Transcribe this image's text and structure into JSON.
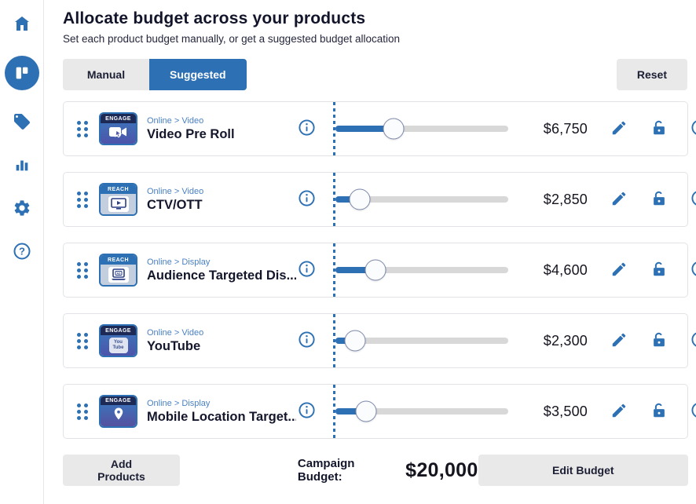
{
  "accent_color": "#2d70b3",
  "sidebar": {
    "items": [
      {
        "icon": "home-icon"
      },
      {
        "icon": "dashboard-icon",
        "active": true
      },
      {
        "icon": "tag-icon"
      },
      {
        "icon": "bar-chart-icon"
      },
      {
        "icon": "gear-icon"
      },
      {
        "icon": "help-icon"
      }
    ]
  },
  "header": {
    "title": "Allocate budget across your products",
    "subtitle": "Set each product budget manually, or get a suggested budget allocation"
  },
  "toolbar": {
    "tabs": [
      {
        "label": "Manual",
        "active": false
      },
      {
        "label": "Suggested",
        "active": true
      }
    ],
    "reset_label": "Reset"
  },
  "products": [
    {
      "badge": "ENGAGE",
      "category": "Online > Video",
      "name": "Video Pre Roll",
      "value": "$6,750",
      "percent": 33.75,
      "icon": "video-camera-icon"
    },
    {
      "badge": "REACH",
      "category": "Online > Video",
      "name": "CTV/OTT",
      "value": "$2,850",
      "percent": 14.25,
      "icon": "tv-icon"
    },
    {
      "badge": "REACH",
      "category": "Online > Display",
      "name": "Audience Targeted Dis...",
      "value": "$4,600",
      "percent": 23,
      "icon": "laptop-ad-icon"
    },
    {
      "badge": "ENGAGE",
      "category": "Online > Video",
      "name": "YouTube",
      "value": "$2,300",
      "percent": 11.5,
      "icon": "youtube-icon"
    },
    {
      "badge": "ENGAGE",
      "category": "Online > Display",
      "name": "Mobile Location Target...",
      "value": "$3,500",
      "percent": 17.5,
      "icon": "location-pin-icon"
    }
  ],
  "youtube_tile": {
    "line1": "You",
    "line2": "Tube"
  },
  "footer": {
    "add_products_label": "Add Products",
    "campaign_budget_label": "Campaign Budget:",
    "campaign_budget_value": "$20,000",
    "edit_budget_label": "Edit Budget"
  }
}
